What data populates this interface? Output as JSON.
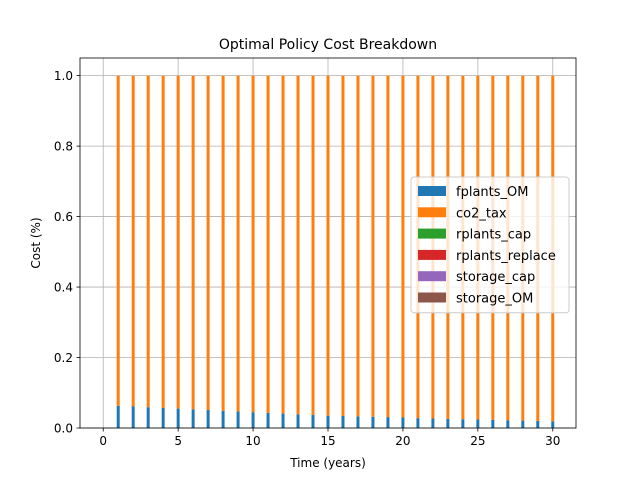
{
  "chart_data": {
    "type": "bar",
    "stacked": true,
    "title": "Optimal Policy Cost Breakdown",
    "xlabel": "Time (years)",
    "ylabel": "Cost (%)",
    "xlim": [
      -1.55,
      31.55
    ],
    "ylim": [
      0,
      1.05
    ],
    "xticks": [
      0,
      5,
      10,
      15,
      20,
      25,
      30
    ],
    "yticks": [
      0.0,
      0.2,
      0.4,
      0.6,
      0.8,
      1.0
    ],
    "ytick_labels": [
      "0.0",
      "0.2",
      "0.4",
      "0.6",
      "0.8",
      "1.0"
    ],
    "grid": true,
    "legend_position": "center-right",
    "bar_width": 0.2,
    "x": [
      1,
      2,
      3,
      4,
      5,
      6,
      7,
      8,
      9,
      10,
      11,
      12,
      13,
      14,
      15,
      16,
      17,
      18,
      19,
      20,
      21,
      22,
      23,
      24,
      25,
      26,
      27,
      28,
      29,
      30
    ],
    "series": [
      {
        "name": "fplants_OM",
        "color": "#1f77b4",
        "values": [
          0.063,
          0.061,
          0.059,
          0.057,
          0.055,
          0.053,
          0.051,
          0.049,
          0.047,
          0.045,
          0.043,
          0.041,
          0.039,
          0.037,
          0.035,
          0.034,
          0.033,
          0.032,
          0.031,
          0.03,
          0.028,
          0.027,
          0.026,
          0.025,
          0.024,
          0.023,
          0.022,
          0.021,
          0.02,
          0.019
        ]
      },
      {
        "name": "co2_tax",
        "color": "#ff7f0e",
        "values": [
          0.937,
          0.939,
          0.941,
          0.943,
          0.945,
          0.947,
          0.949,
          0.951,
          0.953,
          0.955,
          0.957,
          0.959,
          0.961,
          0.963,
          0.965,
          0.966,
          0.967,
          0.968,
          0.969,
          0.97,
          0.972,
          0.973,
          0.974,
          0.975,
          0.976,
          0.977,
          0.978,
          0.979,
          0.98,
          0.981
        ]
      },
      {
        "name": "rplants_cap",
        "color": "#2ca02c",
        "values": [
          0,
          0,
          0,
          0,
          0,
          0,
          0,
          0,
          0,
          0,
          0,
          0,
          0,
          0,
          0,
          0,
          0,
          0,
          0,
          0,
          0,
          0,
          0,
          0,
          0,
          0,
          0,
          0,
          0,
          0
        ]
      },
      {
        "name": "rplants_replace",
        "color": "#d62728",
        "values": [
          0,
          0,
          0,
          0,
          0,
          0,
          0,
          0,
          0,
          0,
          0,
          0,
          0,
          0,
          0,
          0,
          0,
          0,
          0,
          0,
          0,
          0,
          0,
          0,
          0,
          0,
          0,
          0,
          0,
          0
        ]
      },
      {
        "name": "storage_cap",
        "color": "#9467bd",
        "values": [
          0,
          0,
          0,
          0,
          0,
          0,
          0,
          0,
          0,
          0,
          0,
          0,
          0,
          0,
          0,
          0,
          0,
          0,
          0,
          0,
          0,
          0,
          0,
          0,
          0,
          0,
          0,
          0,
          0,
          0
        ]
      },
      {
        "name": "storage_OM",
        "color": "#8c564b",
        "values": [
          0,
          0,
          0,
          0,
          0,
          0,
          0,
          0,
          0,
          0,
          0,
          0,
          0,
          0,
          0,
          0,
          0,
          0,
          0,
          0,
          0,
          0,
          0,
          0,
          0,
          0,
          0,
          0,
          0,
          0
        ]
      }
    ]
  }
}
